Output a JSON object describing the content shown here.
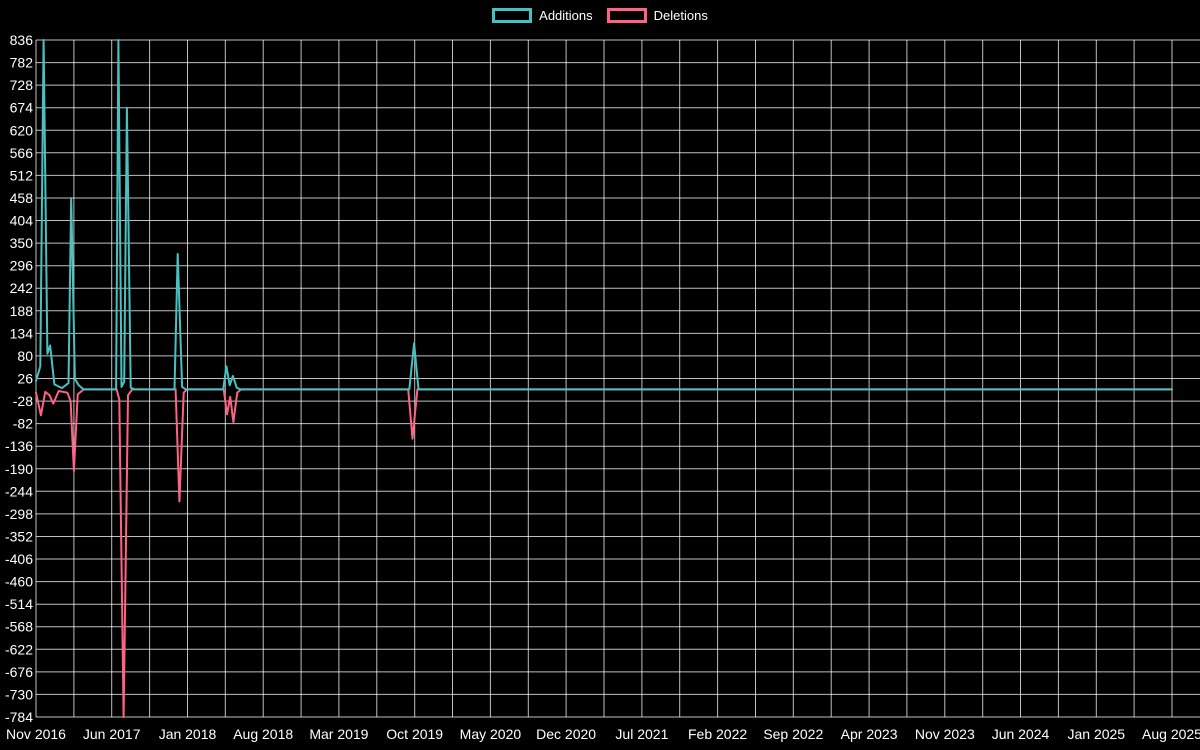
{
  "chart_data": {
    "type": "line",
    "title": "",
    "background_color": "#000000",
    "grid_color": "#ffffff",
    "text_color": "#ffffff",
    "legend_position": "top",
    "grid": true,
    "legend": [
      {
        "label": "Additions",
        "color": "#4bc0c0"
      },
      {
        "label": "Deletions",
        "color": "#ff6384"
      }
    ],
    "x_axis": {
      "label": "",
      "unit": "months",
      "months_total": 105,
      "gridline_month_step": 3.5,
      "tick_month_positions": [
        0,
        7,
        14,
        21,
        28,
        35,
        42,
        49,
        56,
        63,
        70,
        77,
        84,
        91,
        98,
        105
      ],
      "tick_labels": [
        "Nov 2016",
        "Jun 2017",
        "Jan 2018",
        "Aug 2018",
        "Mar 2019",
        "Oct 2019",
        "May 2020",
        "Dec 2020",
        "Jul 2021",
        "Feb 2022",
        "Sep 2022",
        "Apr 2023",
        "Nov 2023",
        "Jun 2024",
        "Jan 2025",
        "Aug 2025"
      ]
    },
    "y_axis": {
      "label": "",
      "min": -784,
      "max": 836,
      "tick_step": 54,
      "tick_labels": [
        836,
        782,
        728,
        674,
        620,
        566,
        512,
        458,
        404,
        350,
        296,
        242,
        188,
        134,
        80,
        26,
        -28,
        -82,
        -136,
        -190,
        -244,
        -298,
        -352,
        -406,
        -460,
        -514,
        -568,
        -622,
        -676,
        -730,
        -784
      ]
    },
    "series": [
      {
        "name": "Additions",
        "color": "#4bc0c0",
        "points": [
          [
            0,
            20
          ],
          [
            0.4,
            55
          ],
          [
            0.7,
            836
          ],
          [
            1.05,
            85
          ],
          [
            1.3,
            105
          ],
          [
            1.7,
            12
          ],
          [
            2.4,
            3
          ],
          [
            3,
            15
          ],
          [
            3.25,
            458
          ],
          [
            3.6,
            25
          ],
          [
            3.95,
            10
          ],
          [
            4.4,
            0
          ],
          [
            7.4,
            0
          ],
          [
            7.62,
            836
          ],
          [
            7.9,
            6
          ],
          [
            8.15,
            18
          ],
          [
            8.4,
            674
          ],
          [
            8.75,
            4
          ],
          [
            9.1,
            0
          ],
          [
            12.8,
            0
          ],
          [
            13.1,
            324
          ],
          [
            13.5,
            6
          ],
          [
            13.85,
            0
          ],
          [
            17.3,
            0
          ],
          [
            17.6,
            55
          ],
          [
            17.9,
            10
          ],
          [
            18.2,
            32
          ],
          [
            18.55,
            4
          ],
          [
            18.9,
            0
          ],
          [
            34.5,
            0
          ],
          [
            34.95,
            110
          ],
          [
            35.35,
            0
          ],
          [
            105,
            0
          ]
        ]
      },
      {
        "name": "Deletions",
        "color": "#ff6384",
        "points": [
          [
            0,
            -8
          ],
          [
            0.45,
            -62
          ],
          [
            0.85,
            -6
          ],
          [
            1.25,
            -14
          ],
          [
            1.6,
            -34
          ],
          [
            2.1,
            -4
          ],
          [
            2.9,
            -8
          ],
          [
            3.2,
            -28
          ],
          [
            3.5,
            -195
          ],
          [
            3.85,
            -12
          ],
          [
            4.4,
            0
          ],
          [
            7.45,
            0
          ],
          [
            7.7,
            -24
          ],
          [
            8.1,
            -784
          ],
          [
            8.5,
            -14
          ],
          [
            8.9,
            0
          ],
          [
            12.9,
            0
          ],
          [
            13.25,
            -268
          ],
          [
            13.65,
            -8
          ],
          [
            13.95,
            0
          ],
          [
            17.35,
            0
          ],
          [
            17.65,
            -60
          ],
          [
            17.95,
            -18
          ],
          [
            18.25,
            -78
          ],
          [
            18.6,
            -8
          ],
          [
            18.95,
            0
          ],
          [
            34.4,
            0
          ],
          [
            34.8,
            -118
          ],
          [
            35.25,
            0
          ],
          [
            105,
            0
          ]
        ]
      }
    ]
  }
}
